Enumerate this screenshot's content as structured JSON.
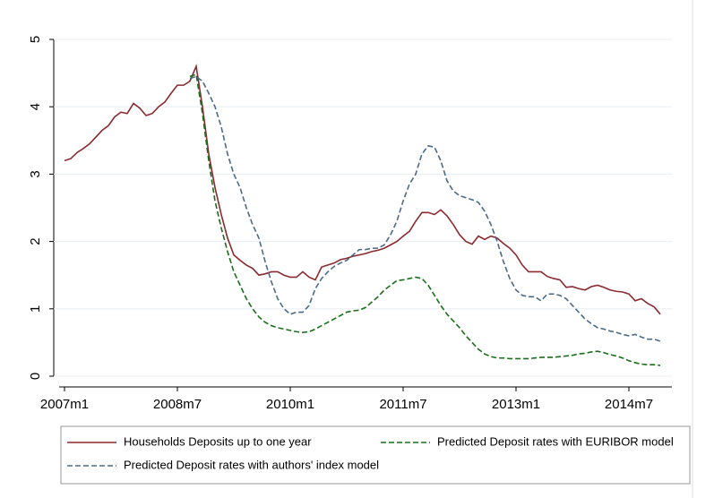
{
  "chart_data": {
    "type": "line",
    "categories": [
      "2007m1",
      null,
      null,
      null,
      null,
      null,
      null,
      null,
      null,
      null,
      null,
      null,
      null,
      null,
      null,
      null,
      null,
      null,
      "2008m7",
      null,
      null,
      null,
      null,
      null,
      null,
      null,
      null,
      null,
      null,
      null,
      null,
      null,
      null,
      null,
      null,
      null,
      "2010m1",
      null,
      null,
      null,
      null,
      null,
      null,
      null,
      null,
      null,
      null,
      null,
      null,
      null,
      null,
      null,
      null,
      null,
      "2011m7",
      null,
      null,
      null,
      null,
      null,
      null,
      null,
      null,
      null,
      null,
      null,
      null,
      null,
      null,
      null,
      null,
      null,
      "2013m1",
      null,
      null,
      null,
      null,
      null,
      null,
      null,
      null,
      null,
      null,
      null,
      null,
      null,
      null,
      null,
      null,
      null,
      "2014m7",
      null,
      null,
      null,
      null,
      null
    ],
    "series": [
      {
        "name": "Households Deposits up to one year",
        "color": "#8b2a2f",
        "dash": false,
        "values": [
          3.2,
          3.23,
          3.32,
          3.38,
          3.45,
          3.55,
          3.65,
          3.72,
          3.85,
          3.92,
          3.9,
          4.05,
          3.98,
          3.87,
          3.9,
          4.0,
          4.07,
          4.2,
          4.32,
          4.32,
          4.38,
          4.6,
          4.0,
          3.3,
          2.8,
          2.4,
          2.05,
          1.8,
          1.72,
          1.65,
          1.6,
          1.5,
          1.52,
          1.55,
          1.55,
          1.5,
          1.47,
          1.47,
          1.55,
          1.47,
          1.43,
          1.62,
          1.65,
          1.68,
          1.73,
          1.75,
          1.78,
          1.8,
          1.82,
          1.85,
          1.87,
          1.9,
          1.95,
          2.0,
          2.08,
          2.15,
          2.3,
          2.43,
          2.43,
          2.4,
          2.47,
          2.38,
          2.25,
          2.1,
          2.0,
          1.96,
          2.08,
          2.03,
          2.08,
          2.05,
          1.97,
          1.9,
          1.8,
          1.65,
          1.55,
          1.55,
          1.55,
          1.48,
          1.45,
          1.43,
          1.32,
          1.33,
          1.3,
          1.28,
          1.33,
          1.35,
          1.32,
          1.28,
          1.26,
          1.25,
          1.22,
          1.12,
          1.15,
          1.08,
          1.03,
          0.92
        ]
      },
      {
        "name": "Predicted Deposit rates with EURIBOR model",
        "color": "#1a6e1a",
        "dash": true,
        "values": [
          null,
          null,
          null,
          null,
          null,
          null,
          null,
          null,
          null,
          null,
          null,
          null,
          null,
          null,
          null,
          null,
          null,
          null,
          null,
          null,
          4.45,
          4.48,
          3.9,
          3.2,
          2.6,
          2.2,
          1.85,
          1.55,
          1.35,
          1.15,
          1.0,
          0.88,
          0.8,
          0.75,
          0.72,
          0.7,
          0.68,
          0.66,
          0.65,
          0.66,
          0.7,
          0.75,
          0.8,
          0.85,
          0.9,
          0.95,
          0.97,
          0.98,
          1.02,
          1.1,
          1.18,
          1.28,
          1.35,
          1.42,
          1.43,
          1.45,
          1.47,
          1.45,
          1.35,
          1.2,
          1.05,
          0.92,
          0.82,
          0.72,
          0.6,
          0.5,
          0.4,
          0.33,
          0.29,
          0.27,
          0.27,
          0.26,
          0.26,
          0.26,
          0.26,
          0.27,
          0.28,
          0.28,
          0.28,
          0.29,
          0.3,
          0.31,
          0.33,
          0.34,
          0.36,
          0.37,
          0.35,
          0.32,
          0.3,
          0.27,
          0.23,
          0.2,
          0.18,
          0.17,
          0.17,
          0.16
        ]
      },
      {
        "name": "Predicted Deposit rates with authors' index model",
        "color": "#4a6a8a",
        "dash": true,
        "values": [
          null,
          null,
          null,
          null,
          null,
          null,
          null,
          null,
          null,
          null,
          null,
          null,
          null,
          null,
          null,
          null,
          null,
          null,
          null,
          null,
          4.42,
          4.45,
          4.38,
          4.2,
          4.0,
          3.7,
          3.3,
          3.0,
          2.8,
          2.5,
          2.25,
          2.05,
          1.7,
          1.4,
          1.15,
          1.0,
          0.92,
          0.95,
          0.95,
          1.05,
          1.3,
          1.45,
          1.55,
          1.63,
          1.68,
          1.72,
          1.8,
          1.88,
          1.88,
          1.9,
          1.9,
          1.95,
          2.1,
          2.3,
          2.6,
          2.85,
          3.0,
          3.3,
          3.42,
          3.4,
          3.2,
          2.9,
          2.75,
          2.68,
          2.65,
          2.62,
          2.58,
          2.45,
          2.25,
          2.0,
          1.7,
          1.45,
          1.28,
          1.2,
          1.18,
          1.18,
          1.12,
          1.22,
          1.22,
          1.2,
          1.15,
          1.05,
          0.95,
          0.85,
          0.78,
          0.72,
          0.7,
          0.67,
          0.65,
          0.62,
          0.6,
          0.62,
          0.58,
          0.55,
          0.55,
          0.52
        ]
      }
    ],
    "ylim": [
      0,
      5
    ],
    "yticks": [
      0,
      1,
      2,
      3,
      4,
      5
    ],
    "grid": true,
    "legend": "bottom"
  }
}
